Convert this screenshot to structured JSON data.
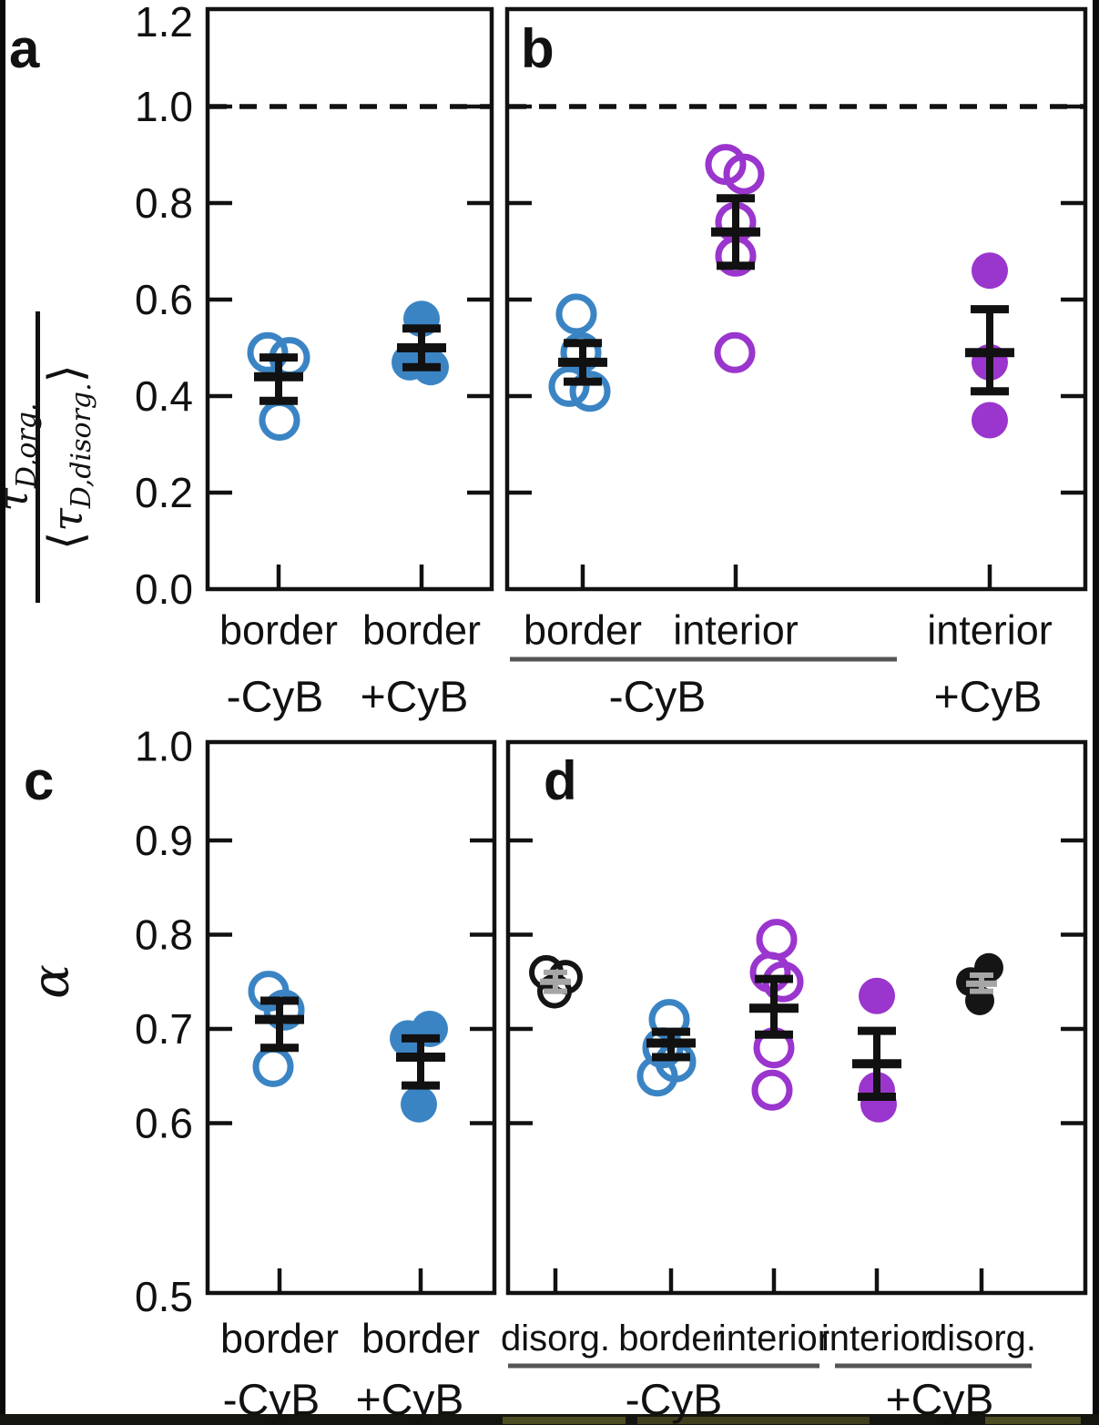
{
  "style": {
    "colors": {
      "blue": "#3b84c4",
      "purple": "#9a35cd",
      "black_marker": "#151515",
      "gray_errorbar": "#a6a6a6",
      "errorbar": "#111111",
      "underline_gray": "#555555",
      "axis": "#111111",
      "background": "#ffffff"
    }
  },
  "ylabels": {
    "tau": "τ",
    "num_sub": "D,org.",
    "lang": "⟨",
    "rang": "⟩",
    "den_sub": "D,disorg.",
    "alpha": "α"
  },
  "chart_data": [
    {
      "panel": "a",
      "type": "scatter",
      "ylabel": "τ_D,org. / ⟨τ_D,disorg.⟩",
      "ylim": [
        0.0,
        1.2
      ],
      "yticks": [
        "1.2",
        "1.0",
        "0.8",
        "0.6",
        "0.4",
        "0.2",
        "0.0"
      ],
      "reference_line_y": 1.0,
      "x_categories": [
        "border",
        "border"
      ],
      "treatments": [
        {
          "label": "-CyB",
          "underline": false
        },
        {
          "label": "+CyB",
          "underline": false
        }
      ],
      "groups": [
        {
          "category": "border",
          "treatment": "-CyB",
          "marker": "open-circle",
          "color": "blue",
          "values": [
            0.49,
            0.48,
            0.35
          ],
          "mean": 0.44,
          "err_low": 0.39,
          "err_high": 0.48
        },
        {
          "category": "border",
          "treatment": "+CyB",
          "marker": "filled-circle",
          "color": "blue",
          "values": [
            0.56,
            0.47,
            0.46
          ],
          "mean": 0.5,
          "err_low": 0.46,
          "err_high": 0.54
        }
      ]
    },
    {
      "panel": "b",
      "type": "scatter",
      "ylabel": "",
      "ylim": [
        0.0,
        1.2
      ],
      "yticks": [
        "1.2",
        "1.0",
        "0.8",
        "0.6",
        "0.4",
        "0.2",
        "0.0"
      ],
      "reference_line_y": 1.0,
      "x_categories": [
        "border",
        "interior",
        "interior"
      ],
      "treatments": [
        {
          "label": "-CyB",
          "underline": true
        },
        {
          "label": "+CyB",
          "underline": false
        }
      ],
      "groups": [
        {
          "category": "border",
          "treatment": "-CyB",
          "marker": "open-circle",
          "color": "blue",
          "values": [
            0.57,
            0.49,
            0.42,
            0.41
          ],
          "mean": 0.47,
          "err_low": 0.43,
          "err_high": 0.51
        },
        {
          "category": "interior",
          "treatment": "-CyB",
          "marker": "open-circle",
          "color": "purple",
          "values": [
            0.88,
            0.86,
            0.76,
            0.69,
            0.49
          ],
          "mean": 0.74,
          "err_low": 0.67,
          "err_high": 0.81
        },
        {
          "category": "interior",
          "treatment": "+CyB",
          "marker": "filled-circle",
          "color": "purple",
          "values": [
            0.66,
            0.47,
            0.35
          ],
          "mean": 0.49,
          "err_low": 0.41,
          "err_high": 0.58
        }
      ]
    },
    {
      "panel": "c",
      "type": "scatter",
      "ylabel": "α",
      "ylim": [
        0.5,
        1.0
      ],
      "yticks": [
        "1.0",
        "0.9",
        "0.8",
        "0.7",
        "0.6",
        "0.5"
      ],
      "reference_line_y": null,
      "x_categories": [
        "border",
        "border"
      ],
      "treatments": [
        {
          "label": "-CyB",
          "underline": false
        },
        {
          "label": "+CyB",
          "underline": false
        }
      ],
      "groups": [
        {
          "category": "border",
          "treatment": "-CyB",
          "marker": "open-circle",
          "color": "blue",
          "values": [
            0.74,
            0.72,
            0.66
          ],
          "mean": 0.71,
          "err_low": 0.68,
          "err_high": 0.73
        },
        {
          "category": "border",
          "treatment": "+CyB",
          "marker": "filled-circle",
          "color": "blue",
          "values": [
            0.7,
            0.69,
            0.62
          ],
          "mean": 0.67,
          "err_low": 0.64,
          "err_high": 0.69
        }
      ]
    },
    {
      "panel": "d",
      "type": "scatter",
      "ylabel": "",
      "ylim": [
        0.5,
        1.0
      ],
      "yticks": [
        "1.0",
        "0.9",
        "0.8",
        "0.7",
        "0.6",
        "0.5"
      ],
      "reference_line_y": null,
      "x_categories": [
        "disorg.",
        "border",
        "interior",
        "interior",
        "disorg."
      ],
      "treatments": [
        {
          "label": "-CyB",
          "underline": true
        },
        {
          "label": "+CyB",
          "underline": true
        }
      ],
      "groups": [
        {
          "category": "disorg.",
          "treatment": "-CyB",
          "marker": "open-circle",
          "color": "black",
          "size": "small",
          "errbar": "gray",
          "values": [
            0.76,
            0.755,
            0.74
          ],
          "mean": 0.75,
          "err_low": 0.74,
          "err_high": 0.76
        },
        {
          "category": "border",
          "treatment": "-CyB",
          "marker": "open-circle",
          "color": "blue",
          "values": [
            0.71,
            0.68,
            0.665,
            0.65
          ],
          "mean": 0.685,
          "err_low": 0.67,
          "err_high": 0.697
        },
        {
          "category": "interior",
          "treatment": "-CyB",
          "marker": "open-circle",
          "color": "purple",
          "values": [
            0.795,
            0.76,
            0.75,
            0.68,
            0.635
          ],
          "mean": 0.722,
          "err_low": 0.694,
          "err_high": 0.753
        },
        {
          "category": "interior",
          "treatment": "+CyB",
          "marker": "filled-circle",
          "color": "purple",
          "values": [
            0.735,
            0.635,
            0.62
          ],
          "mean": 0.663,
          "err_low": 0.628,
          "err_high": 0.698
        },
        {
          "category": "disorg.",
          "treatment": "+CyB",
          "marker": "filled-circle",
          "color": "black",
          "size": "small",
          "errbar": "gray",
          "values": [
            0.765,
            0.75,
            0.73
          ],
          "mean": 0.748,
          "err_low": 0.74,
          "err_high": 0.757
        }
      ]
    }
  ]
}
